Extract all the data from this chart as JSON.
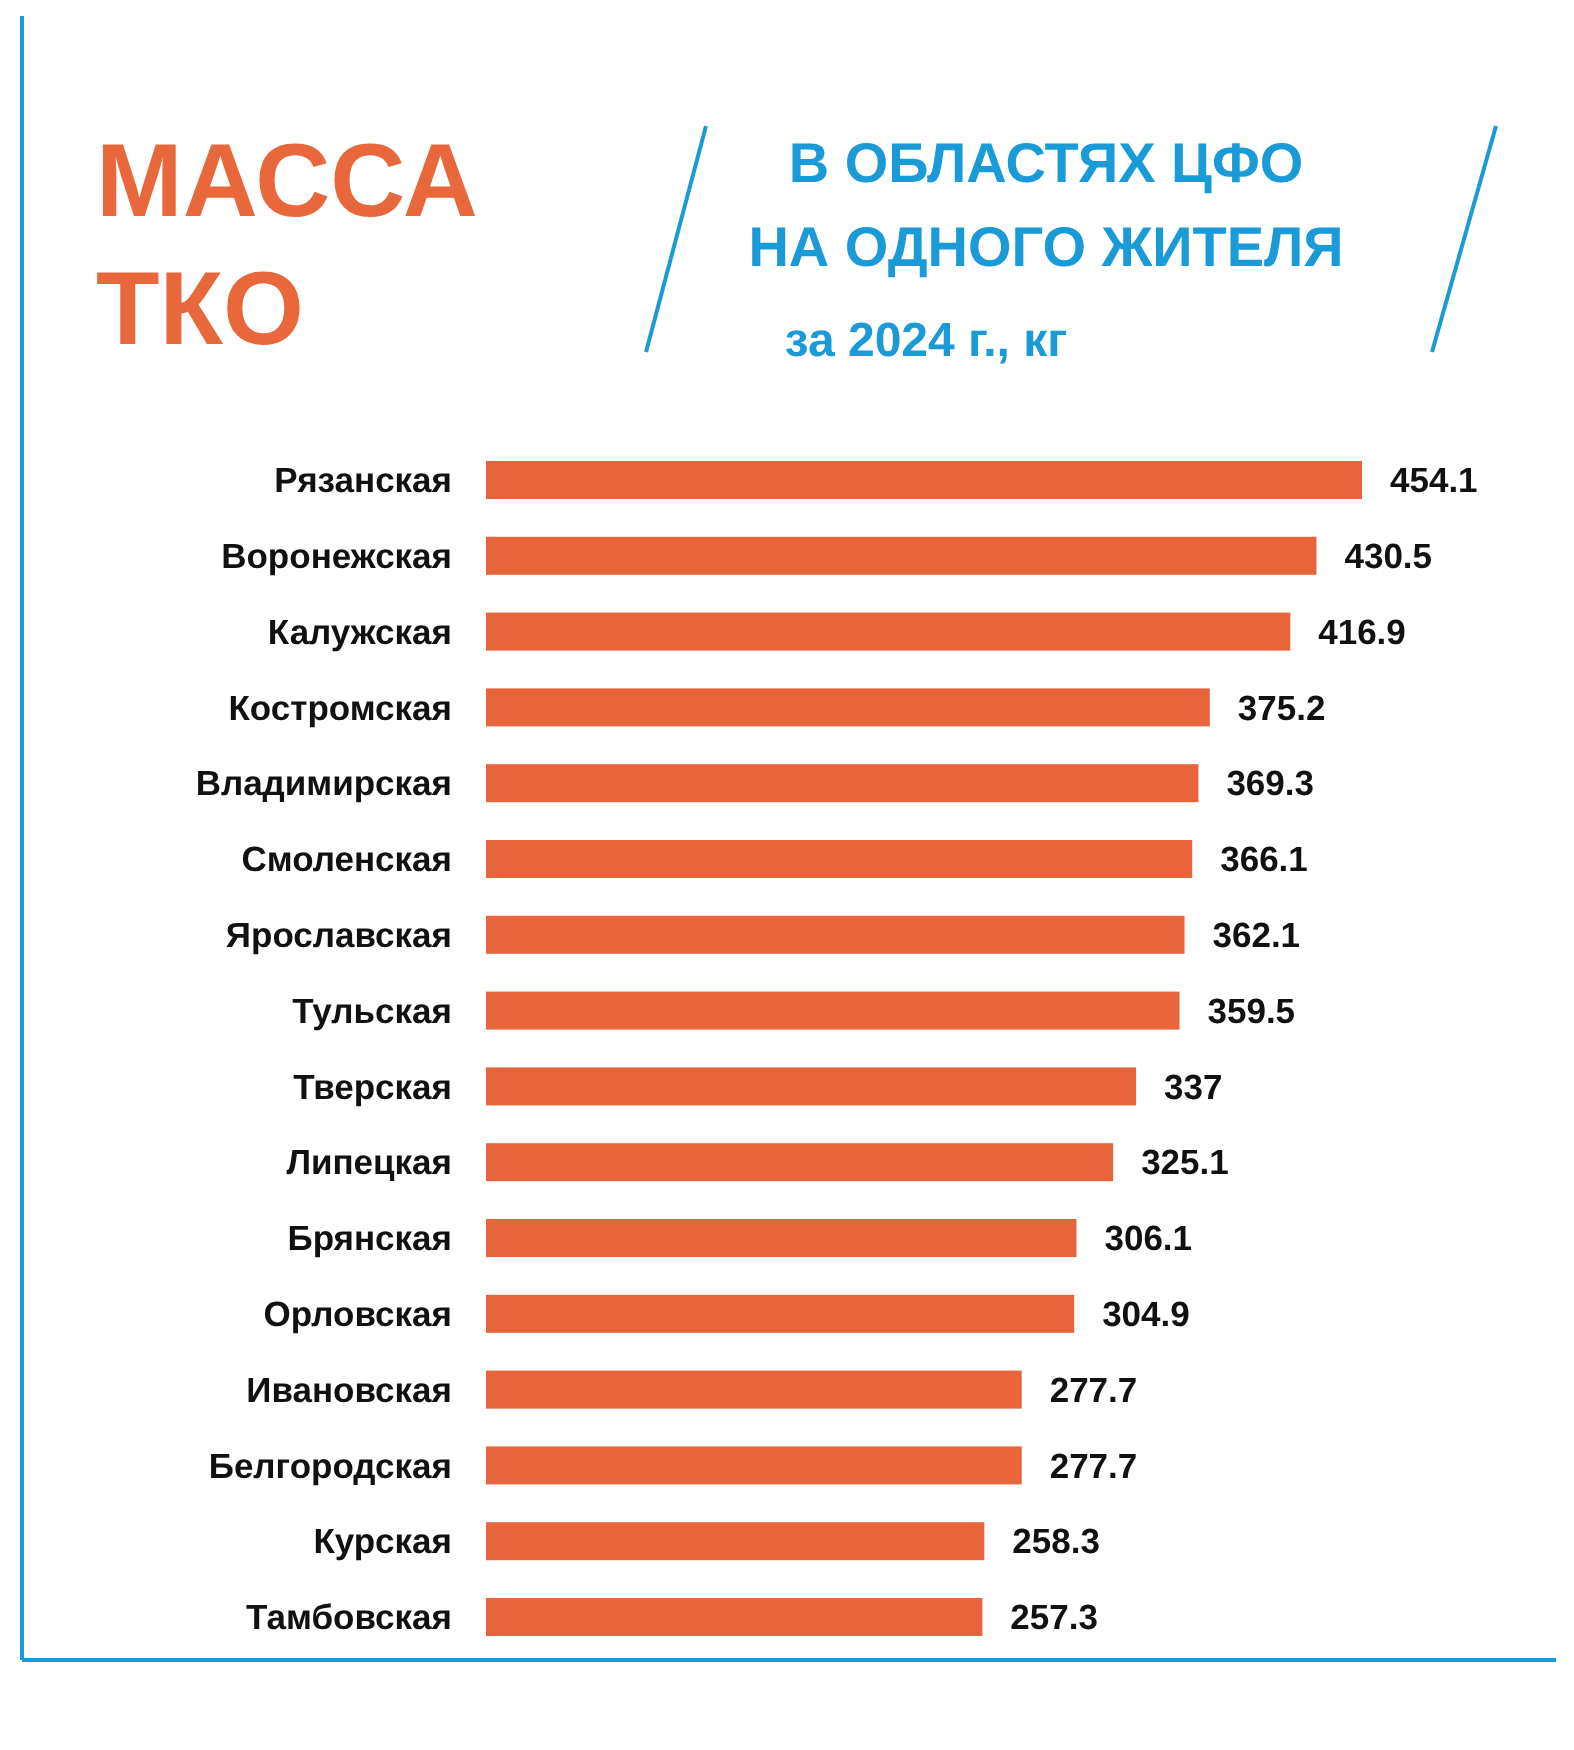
{
  "chart_data": {
    "type": "bar",
    "orientation": "horizontal",
    "title": "МАССА ТКО",
    "subtitle": "В ОБЛАСТЯХ ЦФО НА ОДНОГО ЖИТЕЛЯ",
    "annotations": [
      "за 2024 г., кг"
    ],
    "categories": [
      "Рязанская",
      "Воронежская",
      "Калужская",
      "Костромская",
      "Владимирская",
      "Смоленская",
      "Ярославская",
      "Тульская",
      "Тверская",
      "Липецкая",
      "Брянская",
      "Орловская",
      "Ивановская",
      "Белгородская",
      "Курская",
      "Тамбовская"
    ],
    "values": [
      454.1,
      430.5,
      416.9,
      375.2,
      369.3,
      366.1,
      362.1,
      359.5,
      337,
      325.1,
      306.1,
      304.9,
      277.7,
      277.7,
      258.3,
      257.3
    ],
    "color": "#e8643a",
    "data_labels": true
  }
}
